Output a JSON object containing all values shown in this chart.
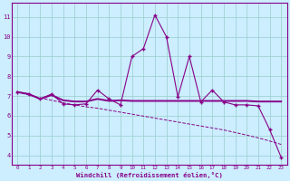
{
  "xlabel": "Windchill (Refroidissement éolien,°C)",
  "bg_color": "#cceeff",
  "line_color": "#880088",
  "grid_color": "#99cccc",
  "xlim": [
    -0.5,
    23.5
  ],
  "ylim": [
    3.5,
    11.7
  ],
  "xticks": [
    0,
    1,
    2,
    3,
    4,
    5,
    6,
    7,
    8,
    9,
    10,
    11,
    12,
    13,
    14,
    15,
    16,
    17,
    18,
    19,
    20,
    21,
    22,
    23
  ],
  "yticks": [
    4,
    5,
    6,
    7,
    8,
    9,
    10,
    11
  ],
  "main_y": [
    7.2,
    7.1,
    6.85,
    7.1,
    6.6,
    6.55,
    6.6,
    7.3,
    6.85,
    6.55,
    9.0,
    9.4,
    11.1,
    10.0,
    6.95,
    9.0,
    6.7,
    7.3,
    6.7,
    6.55,
    6.55,
    6.5,
    5.3,
    3.9
  ],
  "flat_y": [
    7.2,
    7.1,
    6.85,
    7.05,
    6.78,
    6.72,
    6.72,
    6.85,
    6.75,
    6.78,
    6.75,
    6.75,
    6.75,
    6.75,
    6.75,
    6.75,
    6.75,
    6.75,
    6.75,
    6.75,
    6.75,
    6.72,
    6.72,
    6.72
  ],
  "trend_y": [
    7.2,
    7.05,
    6.9,
    6.78,
    6.65,
    6.55,
    6.45,
    6.38,
    6.28,
    6.18,
    6.08,
    5.98,
    5.88,
    5.78,
    5.68,
    5.58,
    5.48,
    5.38,
    5.28,
    5.15,
    5.02,
    4.88,
    4.72,
    4.55
  ]
}
